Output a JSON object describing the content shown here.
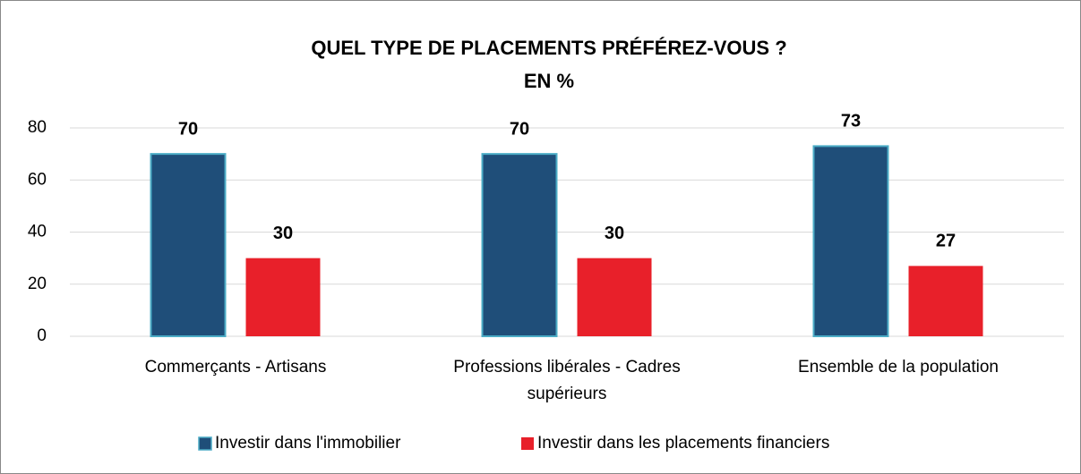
{
  "chart_data": {
    "type": "bar",
    "title": "QUEL TYPE DE PLACEMENTS PRÉFÉREZ-VOUS ?",
    "subtitle": "EN %",
    "categories": [
      "Commerçants - Artisans",
      "Professions libérales - Cadres supérieurs",
      "Ensemble de la population"
    ],
    "series": [
      {
        "name": "Investir dans l'immobilier",
        "color": "#1f4e79",
        "values": [
          70,
          70,
          73
        ]
      },
      {
        "name": "Investir dans les placements financiers",
        "color": "#e8202a",
        "values": [
          30,
          30,
          27
        ]
      }
    ],
    "ylim": [
      0,
      80
    ],
    "yticks": [
      0,
      20,
      40,
      60,
      80
    ],
    "grid": true,
    "legend": "bottom"
  }
}
